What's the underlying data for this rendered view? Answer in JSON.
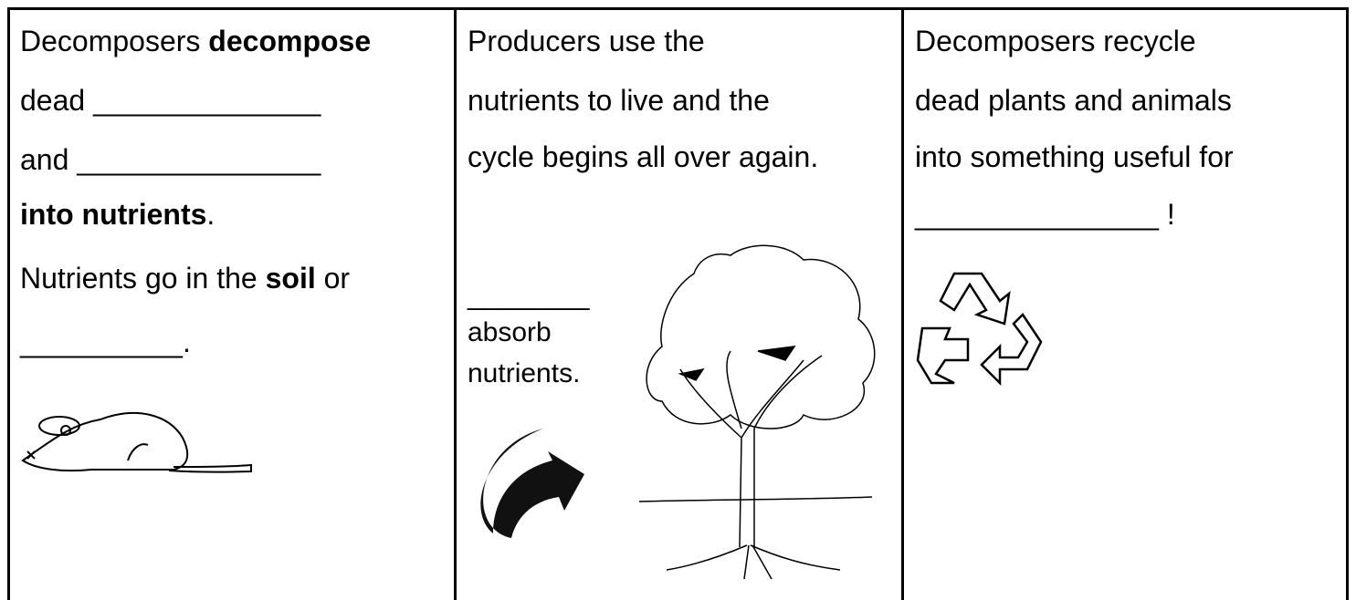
{
  "cells": [
    {
      "lines": [
        [
          {
            "text": "Decomposers "
          },
          {
            "text": "decompose",
            "bold": true
          }
        ],
        [
          {
            "text": "dead ______________"
          }
        ],
        [
          {
            "text": "and _______________"
          }
        ],
        [
          {
            "text": "into nutrients",
            "bold": true
          },
          {
            "text": "."
          }
        ],
        [
          {
            "text": "Nutrients go in the "
          },
          {
            "text": "soil",
            "bold": true
          },
          {
            "text": " or"
          }
        ],
        [
          {
            "text": "__________."
          }
        ]
      ]
    },
    {
      "lines": [
        [
          {
            "text": "Producers use the"
          }
        ],
        [
          {
            "text": "nutrients to live and the"
          }
        ],
        [
          {
            "text": "cycle begins all over again."
          }
        ],
        [
          {
            "text": "________"
          }
        ],
        [
          {
            "text": "absorb"
          }
        ],
        [
          {
            "text": "nutrients."
          }
        ]
      ]
    },
    {
      "lines": [
        [
          {
            "text": "Decomposers recycle"
          }
        ],
        [
          {
            "text": "dead plants and animals"
          }
        ],
        [
          {
            "text": "into something useful for"
          }
        ],
        [
          {
            "text": "_______________ !"
          }
        ]
      ]
    }
  ]
}
